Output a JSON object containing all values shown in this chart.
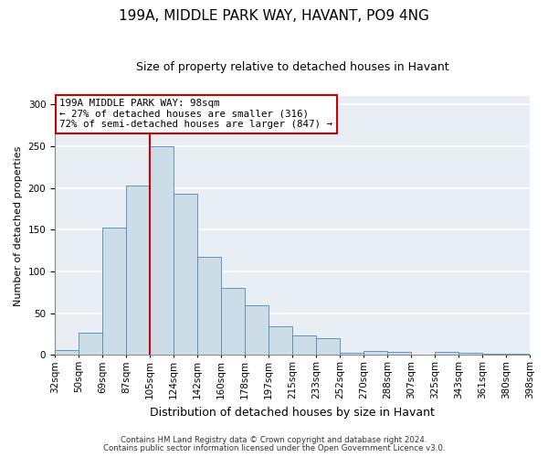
{
  "title": "199A, MIDDLE PARK WAY, HAVANT, PO9 4NG",
  "subtitle": "Size of property relative to detached houses in Havant",
  "xlabel": "Distribution of detached houses by size in Havant",
  "ylabel": "Number of detached properties",
  "bar_labels": [
    "32sqm",
    "50sqm",
    "69sqm",
    "87sqm",
    "105sqm",
    "124sqm",
    "142sqm",
    "160sqm",
    "178sqm",
    "197sqm",
    "215sqm",
    "233sqm",
    "252sqm",
    "270sqm",
    "288sqm",
    "307sqm",
    "325sqm",
    "343sqm",
    "361sqm",
    "380sqm",
    "398sqm"
  ],
  "bar_heights": [
    6,
    27,
    153,
    203,
    250,
    193,
    118,
    80,
    60,
    35,
    24,
    20,
    3,
    5,
    4,
    1,
    4,
    3,
    2,
    2
  ],
  "bar_color": "#ccdde8",
  "bar_edge_color": "#4d8ab5",
  "vline_color": "#cc0000",
  "ylim": [
    0,
    310
  ],
  "yticks": [
    0,
    50,
    100,
    150,
    200,
    250,
    300
  ],
  "annotation_text": "199A MIDDLE PARK WAY: 98sqm\n← 27% of detached houses are smaller (316)\n72% of semi-detached houses are larger (847) →",
  "annotation_box_color": "#ffffff",
  "annotation_box_edge_color": "#cc0000",
  "footer_line1": "Contains HM Land Registry data © Crown copyright and database right 2024.",
  "footer_line2": "Contains public sector information licensed under the Open Government Licence v3.0.",
  "background_color": "#ffffff",
  "plot_bg_color": "#e8eef4",
  "grid_color": "#ffffff",
  "title_fontsize": 11,
  "subtitle_fontsize": 9,
  "xlabel_fontsize": 9,
  "ylabel_fontsize": 8,
  "tick_fontsize": 7.5
}
